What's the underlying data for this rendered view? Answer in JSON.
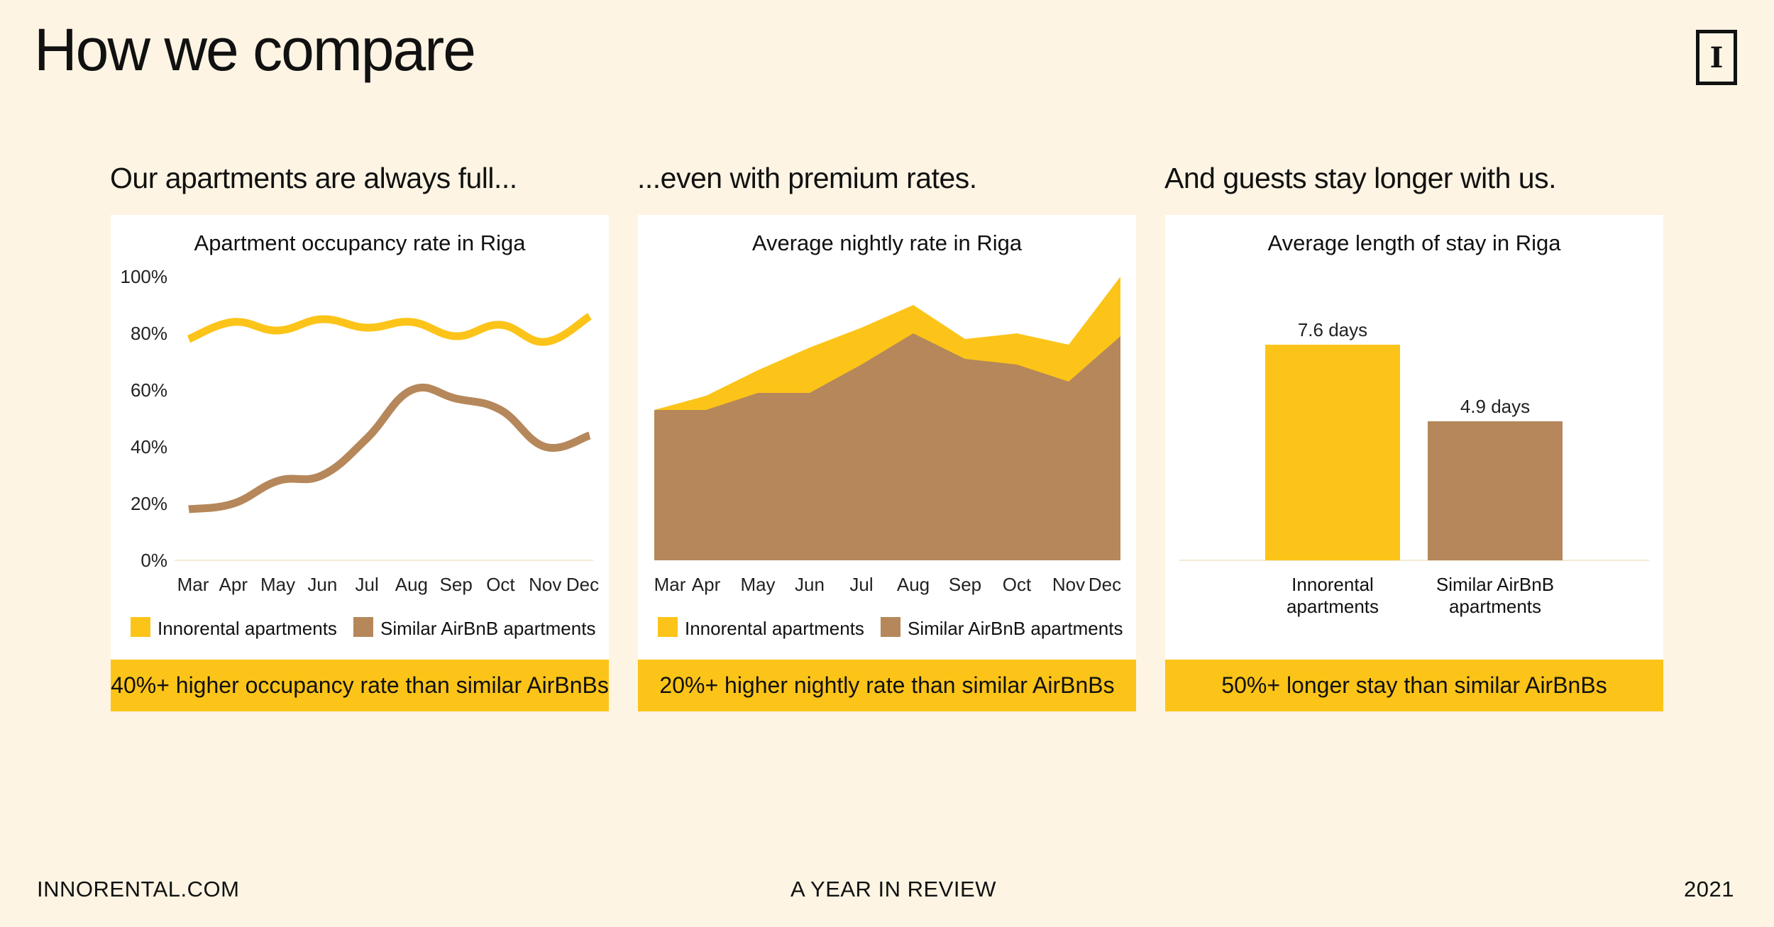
{
  "page": {
    "title": "How we compare",
    "logo_letter": "I",
    "footer": {
      "left": "INNORENTAL.COM",
      "center": "A YEAR IN REVIEW",
      "right": "2021"
    }
  },
  "colors": {
    "innorental": "#fcc419",
    "airbnb": "#b5875a",
    "background": "#fdf4e3"
  },
  "panels": [
    {
      "heading": "Our apartments are always full...",
      "banner": "40%+ higher occupancy rate than similar AirBnBs"
    },
    {
      "heading": "...even with premium rates.",
      "banner": "20%+ higher nightly rate than similar AirBnBs"
    },
    {
      "heading": "And guests stay longer with us.",
      "banner": "50%+ longer stay than similar AirBnBs"
    }
  ],
  "chart_data": [
    {
      "type": "line",
      "title": "Apartment occupancy rate in Riga",
      "categories": [
        "Mar",
        "Apr",
        "May",
        "Jun",
        "Jul",
        "Aug",
        "Sep",
        "Oct",
        "Nov",
        "Dec"
      ],
      "ylim": [
        0,
        100
      ],
      "yticks": [
        "0%",
        "20%",
        "40%",
        "60%",
        "80%",
        "100%"
      ],
      "series": [
        {
          "name": "Innorental apartments",
          "values": [
            78,
            84,
            81,
            85,
            82,
            84,
            79,
            83,
            77,
            86
          ]
        },
        {
          "name": "Similar AirBnB apartments",
          "values": [
            18,
            20,
            28,
            30,
            43,
            60,
            57,
            53,
            40,
            44
          ]
        }
      ]
    },
    {
      "type": "area",
      "title": "Average nightly rate in Riga",
      "categories": [
        "Mar",
        "Apr",
        "May",
        "Jun",
        "Jul",
        "Aug",
        "Sep",
        "Oct",
        "Nov",
        "Dec"
      ],
      "series": [
        {
          "name": "Innorental apartments",
          "values": [
            53,
            58,
            67,
            75,
            82,
            90,
            78,
            80,
            76,
            100
          ]
        },
        {
          "name": "Similar AirBnB apartments",
          "values": [
            53,
            53,
            59,
            59,
            69,
            80,
            71,
            69,
            63,
            79
          ]
        }
      ]
    },
    {
      "type": "bar",
      "title": "Average length of stay in Riga",
      "categories": [
        "Innorental apartments",
        "Similar AirBnB apartments"
      ],
      "category_lines": [
        [
          "Innorental",
          "apartments"
        ],
        [
          "Similar AirBnB",
          "apartments"
        ]
      ],
      "values": [
        7.6,
        4.9
      ],
      "value_labels": [
        "7.6 days",
        "4.9 days"
      ],
      "ylim": [
        0,
        10
      ]
    }
  ]
}
